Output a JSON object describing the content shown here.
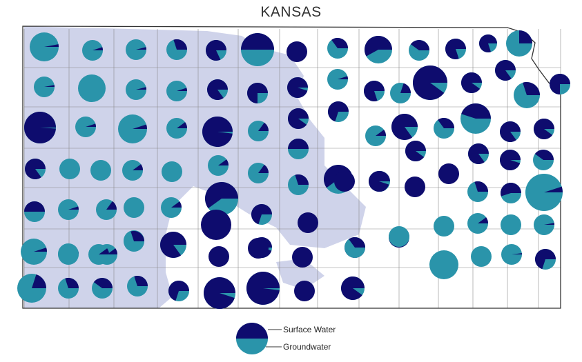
{
  "title": "KANSAS",
  "colors": {
    "surface_water": "#0e0c6e",
    "groundwater": "#2a94aa",
    "aquifer_shading": "#cfd3ea",
    "county_border": "#8a8a8a",
    "state_border": "#333333"
  },
  "legend": {
    "surface_label": "Surface Water",
    "ground_label": "Groundwater"
  },
  "counties": [
    {
      "r": 21,
      "sw": 0.03
    },
    {
      "r": 15,
      "sw": 0.05
    },
    {
      "r": 15,
      "sw": 0.04
    },
    {
      "r": 15,
      "sw": 0.3
    },
    {
      "r": 15,
      "sw": 0.82
    },
    {
      "r": 24,
      "sw": 0.5
    },
    {
      "r": 15,
      "sw": 1.0
    },
    {
      "r": 15,
      "sw": 0.35
    },
    {
      "r": 20,
      "sw": 0.58
    },
    {
      "r": 15,
      "sw": 0.4
    },
    {
      "r": 15,
      "sw": 0.8
    },
    {
      "r": 13,
      "sw": 0.8
    },
    {
      "r": 19,
      "sw": 0.25
    },
    {
      "r": 15,
      "sw": 0.03
    },
    {
      "r": 20,
      "sw": 0.0
    },
    {
      "r": 15,
      "sw": 0.04
    },
    {
      "r": 15,
      "sw": 0.05
    },
    {
      "r": 15,
      "sw": 0.85
    },
    {
      "r": 15,
      "sw": 0.75
    },
    {
      "r": 15,
      "sw": 0.95
    },
    {
      "r": 15,
      "sw": 0.05
    },
    {
      "r": 15,
      "sw": 0.8
    },
    {
      "r": 15,
      "sw": 0.2
    },
    {
      "r": 25,
      "sw": 0.9
    },
    {
      "r": 15,
      "sw": 0.9
    },
    {
      "r": 15,
      "sw": 0.85
    },
    {
      "r": 19,
      "sw": 0.3
    },
    {
      "r": 15,
      "sw": 0.75
    },
    {
      "r": 23,
      "sw": 0.99
    },
    {
      "r": 15,
      "sw": 0.05
    },
    {
      "r": 21,
      "sw": 0.05
    },
    {
      "r": 15,
      "sw": 0.1
    },
    {
      "r": 22,
      "sw": 0.98
    },
    {
      "r": 15,
      "sw": 0.15
    },
    {
      "r": 15,
      "sw": 0.9
    },
    {
      "r": 15,
      "sw": 0.7
    },
    {
      "r": 15,
      "sw": 0.1
    },
    {
      "r": 19,
      "sw": 0.85
    },
    {
      "r": 15,
      "sw": 0.35
    },
    {
      "r": 22,
      "sw": 0.45
    },
    {
      "r": 15,
      "sw": 0.85
    },
    {
      "r": 15,
      "sw": 0.9
    },
    {
      "r": 15,
      "sw": 0.85
    },
    {
      "r": 15,
      "sw": 0.0
    },
    {
      "r": 15,
      "sw": 0.0
    },
    {
      "r": 15,
      "sw": 0.1
    },
    {
      "r": 15,
      "sw": 0.0
    },
    {
      "r": 15,
      "sw": 0.1
    },
    {
      "r": 15,
      "sw": 0.15
    },
    {
      "r": 15,
      "sw": 0.5
    },
    {
      "r": 21,
      "sw": 0.6
    },
    {
      "r": 15,
      "sw": 0.85
    },
    {
      "r": 15,
      "sw": 0.9
    },
    {
      "r": 15,
      "sw": 1.0
    },
    {
      "r": 15,
      "sw": 0.85
    },
    {
      "r": 15,
      "sw": 0.95
    },
    {
      "r": 15,
      "sw": 0.4
    },
    {
      "r": 15,
      "sw": 0.5
    },
    {
      "r": 15,
      "sw": 0.05
    },
    {
      "r": 15,
      "sw": 0.15
    },
    {
      "r": 15,
      "sw": 0.0
    },
    {
      "r": 15,
      "sw": 0.1
    },
    {
      "r": 24,
      "sw": 0.6
    },
    {
      "r": 15,
      "sw": 0.7
    },
    {
      "r": 15,
      "sw": 0.3
    },
    {
      "r": 15,
      "sw": 1.0
    },
    {
      "r": 15,
      "sw": 0.95
    },
    {
      "r": 15,
      "sw": 1.0
    },
    {
      "r": 15,
      "sw": 0.3
    },
    {
      "r": 15,
      "sw": 0.55
    },
    {
      "r": 27,
      "sw": 0.05
    },
    {
      "r": 19,
      "sw": 0.05
    },
    {
      "r": 15,
      "sw": 0.03
    },
    {
      "r": 15,
      "sw": 0.1
    },
    {
      "r": 15,
      "sw": 0.0
    },
    {
      "r": 15,
      "sw": 0.15
    },
    {
      "r": 22,
      "sw": 1.0
    },
    {
      "r": 15,
      "sw": 0.95
    },
    {
      "r": 15,
      "sw": 1.0
    },
    {
      "r": 15,
      "sw": 1.0
    },
    {
      "r": 15,
      "sw": 0.95
    },
    {
      "r": 15,
      "sw": 0.0
    },
    {
      "r": 15,
      "sw": 0.1
    },
    {
      "r": 15,
      "sw": 0.0
    },
    {
      "r": 15,
      "sw": 0.03
    },
    {
      "r": 15,
      "sw": 0.1
    },
    {
      "r": 15,
      "sw": 0.0
    },
    {
      "r": 15,
      "sw": 0.1
    },
    {
      "r": 15,
      "sw": 0.3
    },
    {
      "r": 19,
      "sw": 0.85
    },
    {
      "r": 15,
      "sw": 1.0
    },
    {
      "r": 15,
      "sw": 1.0
    },
    {
      "r": 15,
      "sw": 1.0
    },
    {
      "r": 15,
      "sw": 0.35
    },
    {
      "r": 15,
      "sw": 0.0
    },
    {
      "r": 21,
      "sw": 0.0
    },
    {
      "r": 15,
      "sw": 0.0
    },
    {
      "r": 15,
      "sw": 0.02
    },
    {
      "r": 15,
      "sw": 0.7
    },
    {
      "r": 21,
      "sw": 0.2
    },
    {
      "r": 15,
      "sw": 0.3
    },
    {
      "r": 15,
      "sw": 0.4
    },
    {
      "r": 15,
      "sw": 0.3
    },
    {
      "r": 15,
      "sw": 0.7
    },
    {
      "r": 23,
      "sw": 0.95
    },
    {
      "r": 24,
      "sw": 0.98
    },
    {
      "r": 15,
      "sw": 1.0
    },
    {
      "r": 17,
      "sw": 0.9
    }
  ]
}
